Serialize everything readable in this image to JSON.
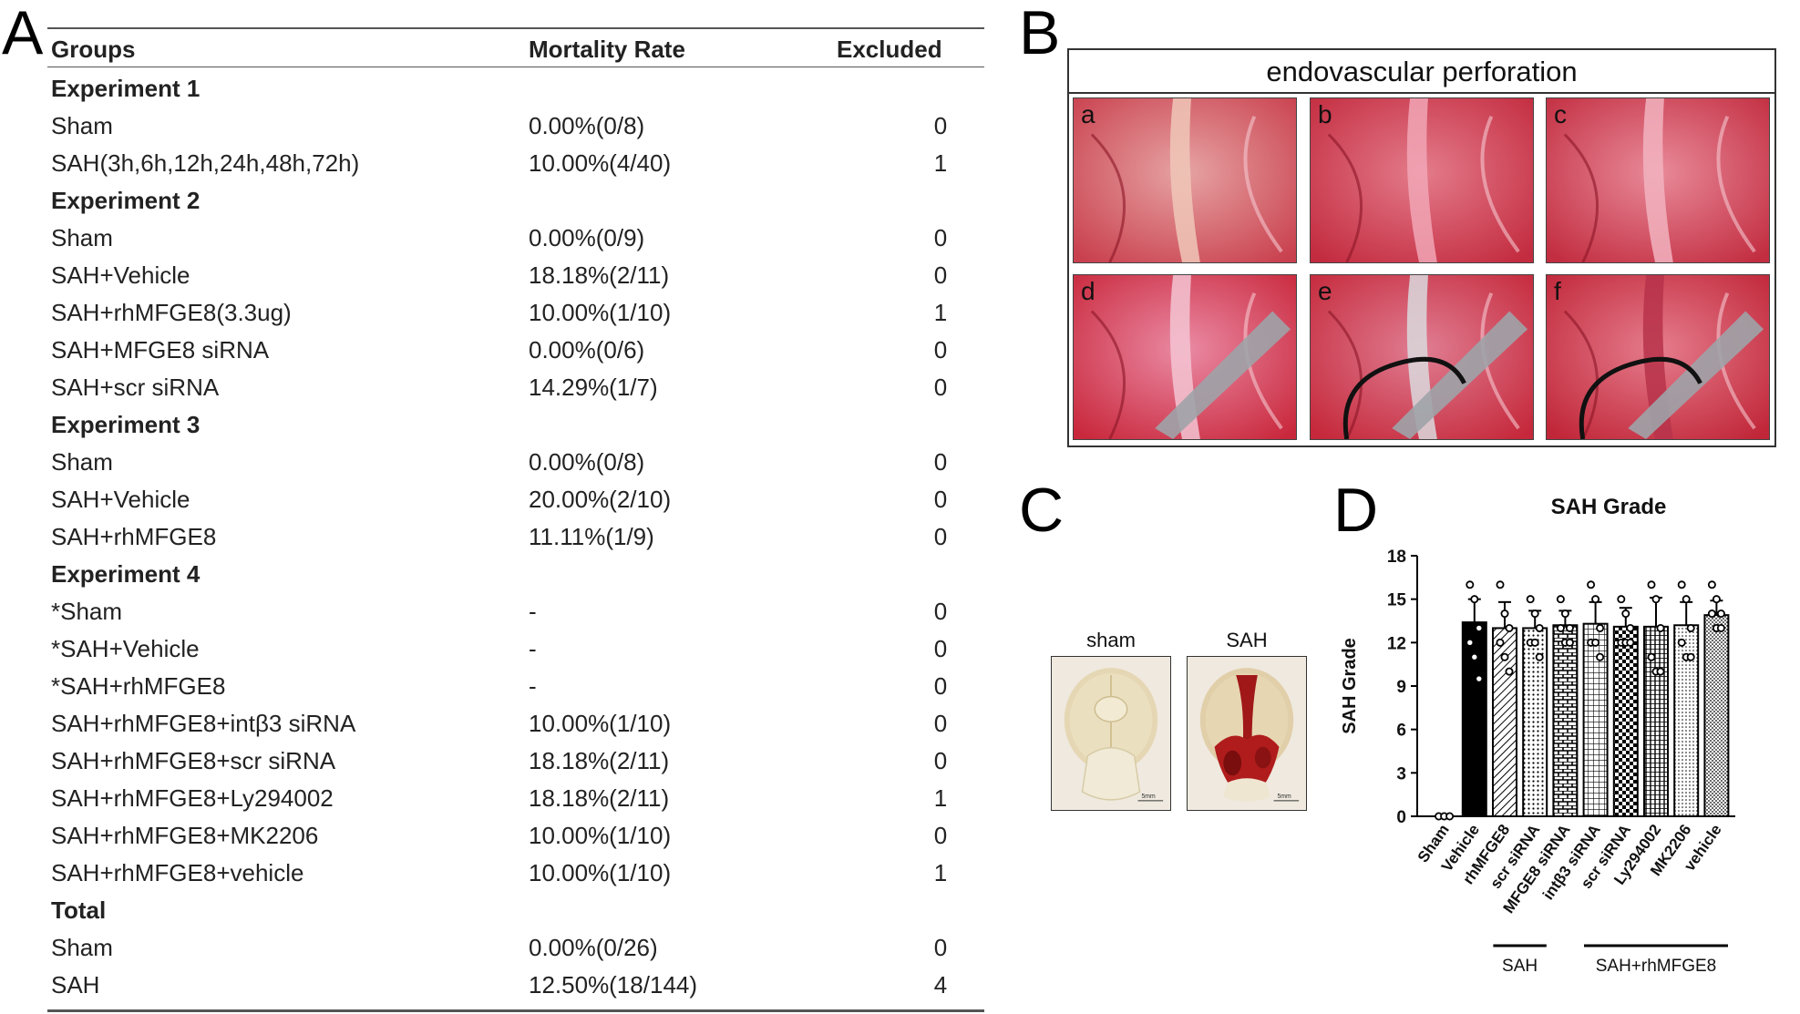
{
  "panels": {
    "a": "A",
    "b": "B",
    "c": "C",
    "d": "D"
  },
  "table": {
    "headers": [
      "Groups",
      "Mortality Rate",
      "Excluded"
    ],
    "rows": [
      {
        "group": "Experiment 1",
        "rate": "",
        "excluded": "",
        "header": true
      },
      {
        "group": "Sham",
        "rate": "0.00%(0/8)",
        "excluded": "0"
      },
      {
        "group": "SAH(3h,6h,12h,24h,48h,72h)",
        "rate": "10.00%(4/40)",
        "excluded": "1"
      },
      {
        "group": "Experiment 2",
        "rate": "",
        "excluded": "",
        "header": true
      },
      {
        "group": "Sham",
        "rate": "0.00%(0/9)",
        "excluded": "0"
      },
      {
        "group": "SAH+Vehicle",
        "rate": "18.18%(2/11)",
        "excluded": "0"
      },
      {
        "group": "SAH+rhMFGE8(3.3ug)",
        "rate": "10.00%(1/10)",
        "excluded": "1"
      },
      {
        "group": "SAH+MFGE8 siRNA",
        "rate": "0.00%(0/6)",
        "excluded": "0"
      },
      {
        "group": "SAH+scr siRNA",
        "rate": "14.29%(1/7)",
        "excluded": "0"
      },
      {
        "group": "Experiment 3",
        "rate": "",
        "excluded": "",
        "header": true
      },
      {
        "group": "Sham",
        "rate": "0.00%(0/8)",
        "excluded": "0"
      },
      {
        "group": "SAH+Vehicle",
        "rate": "20.00%(2/10)",
        "excluded": "0"
      },
      {
        "group": "SAH+rhMFGE8",
        "rate": "11.11%(1/9)",
        "excluded": "0"
      },
      {
        "group": "Experiment 4",
        "rate": "",
        "excluded": "",
        "header": true
      },
      {
        "group": "*Sham",
        "rate": "-",
        "excluded": "0"
      },
      {
        "group": "*SAH+Vehicle",
        "rate": "-",
        "excluded": "0"
      },
      {
        "group": "*SAH+rhMFGE8",
        "rate": "-",
        "excluded": "0"
      },
      {
        "group": "SAH+rhMFGE8+intβ3 siRNA",
        "rate": "10.00%(1/10)",
        "excluded": "0"
      },
      {
        "group": "SAH+rhMFGE8+scr siRNA",
        "rate": "18.18%(2/11)",
        "excluded": "0"
      },
      {
        "group": "SAH+rhMFGE8+Ly294002",
        "rate": "18.18%(2/11)",
        "excluded": "1"
      },
      {
        "group": "SAH+rhMFGE8+MK2206",
        "rate": "10.00%(1/10)",
        "excluded": "0"
      },
      {
        "group": "SAH+rhMFGE8+vehicle",
        "rate": "10.00%(1/10)",
        "excluded": "1"
      },
      {
        "group": "Total",
        "rate": "",
        "excluded": "",
        "header": true
      },
      {
        "group": "Sham",
        "rate": "0.00%(0/26)",
        "excluded": "0"
      },
      {
        "group": "SAH",
        "rate": "12.50%(18/144)",
        "excluded": "4"
      }
    ]
  },
  "panel_b": {
    "title": "endovascular perforation",
    "labels": [
      "a",
      "b",
      "c",
      "d",
      "e",
      "f"
    ]
  },
  "panel_c": {
    "labels": [
      "sham",
      "SAH"
    ],
    "scale_text": "5mm"
  },
  "chart_data": {
    "type": "bar",
    "title": "SAH Grade",
    "ylabel": "SAH Grade",
    "xlabel": "",
    "ylim": [
      0,
      18
    ],
    "yticks": [
      0,
      3,
      6,
      9,
      12,
      15,
      18
    ],
    "categories": [
      "Sham",
      "Vehicle",
      "rhMFGE8",
      "scr siRNA",
      "MFGE8 siRNA",
      "intβ3 siRNA",
      "scr siRNA",
      "Ly294002",
      "MK2206",
      "vehicle"
    ],
    "values": [
      0,
      13.4,
      13.0,
      13.0,
      13.2,
      13.3,
      13.1,
      13.1,
      13.2,
      13.9
    ],
    "errors": [
      0,
      1.6,
      1.8,
      1.2,
      1.0,
      1.5,
      1.3,
      2.0,
      1.6,
      1.0
    ],
    "points": [
      [
        0,
        0,
        0
      ],
      [
        16,
        15,
        13,
        12,
        11,
        9.5
      ],
      [
        16,
        14,
        13,
        12,
        11,
        10
      ],
      [
        15,
        14,
        13,
        12,
        12,
        11
      ],
      [
        15,
        14,
        13,
        13,
        12,
        12
      ],
      [
        16,
        15,
        13,
        12,
        12,
        11
      ],
      [
        15,
        14,
        13,
        12,
        12,
        12
      ],
      [
        16,
        15,
        13,
        11,
        10,
        10
      ],
      [
        16,
        15,
        13,
        12,
        11,
        11
      ],
      [
        16,
        15,
        14,
        14,
        13,
        13
      ]
    ],
    "patterns": [
      "none",
      "solid",
      "diagonal",
      "dots",
      "brick",
      "grid",
      "checker",
      "vertical",
      "dense-dots",
      "fine-dots"
    ],
    "groups": [
      {
        "label": "SAH",
        "from": 2,
        "to": 3
      },
      {
        "label": "SAH+rhMFGE8",
        "from": 5,
        "to": 9
      }
    ],
    "grid": false,
    "legend": "none"
  }
}
